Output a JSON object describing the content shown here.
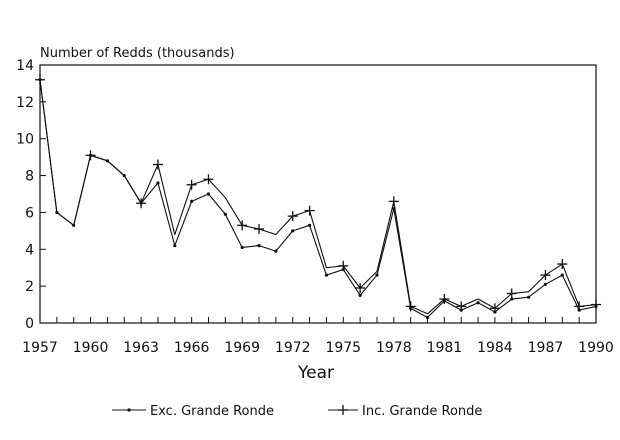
{
  "chart_data": {
    "type": "line",
    "title": "",
    "ylabel": "Number of Redds (thousands)",
    "xlabel": "Year",
    "xlim": [
      1957,
      1990
    ],
    "ylim": [
      0,
      14
    ],
    "y_ticks": [
      0,
      2,
      4,
      6,
      8,
      10,
      12,
      14
    ],
    "x_tick_labels": [
      1957,
      1960,
      1963,
      1966,
      1969,
      1972,
      1975,
      1978,
      1981,
      1984,
      1987,
      1990
    ],
    "grid": false,
    "legend_position": "bottom",
    "series": [
      {
        "name": "Exc. Grande Ronde",
        "marker": "dot",
        "color": "#111111",
        "x": [
          1957,
          1958,
          1959,
          1960,
          1961,
          1962,
          1963,
          1964,
          1965,
          1966,
          1967,
          1968,
          1969,
          1970,
          1971,
          1972,
          1973,
          1974,
          1975,
          1976,
          1977,
          1978,
          1979,
          1980,
          1981,
          1982,
          1983,
          1984,
          1985,
          1986,
          1987,
          1988,
          1989,
          1990
        ],
        "y": [
          13.2,
          6.0,
          5.3,
          9.1,
          8.8,
          8.0,
          6.5,
          7.6,
          4.2,
          6.6,
          7.0,
          5.9,
          4.1,
          4.2,
          3.9,
          5.0,
          5.3,
          2.6,
          2.9,
          1.5,
          2.6,
          6.2,
          0.8,
          0.3,
          1.2,
          0.7,
          1.1,
          0.6,
          1.3,
          1.4,
          2.1,
          2.6,
          0.7,
          0.9
        ]
      },
      {
        "name": "Inc. Grande Ronde",
        "marker": "plus",
        "color": "#111111",
        "x": [
          1957,
          1958,
          1959,
          1960,
          1961,
          1962,
          1963,
          1964,
          1965,
          1966,
          1967,
          1968,
          1969,
          1970,
          1971,
          1972,
          1973,
          1974,
          1975,
          1976,
          1977,
          1978,
          1979,
          1980,
          1981,
          1982,
          1983,
          1984,
          1985,
          1986,
          1987,
          1988,
          1989,
          1990
        ],
        "y": [
          13.2,
          6.0,
          5.3,
          9.1,
          8.8,
          8.0,
          6.5,
          8.6,
          4.8,
          7.5,
          7.8,
          6.8,
          5.3,
          5.1,
          4.8,
          5.8,
          6.1,
          3.0,
          3.1,
          1.9,
          2.8,
          6.6,
          0.9,
          0.5,
          1.3,
          0.9,
          1.3,
          0.8,
          1.6,
          1.7,
          2.6,
          3.2,
          0.9,
          1.0
        ]
      }
    ]
  }
}
